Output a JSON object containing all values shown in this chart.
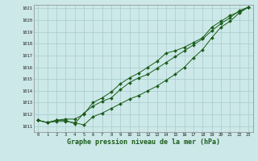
{
  "title": "Graphe pression niveau de la mer (hPa)",
  "xlabel_hours": [
    0,
    1,
    2,
    3,
    4,
    5,
    6,
    7,
    8,
    9,
    10,
    11,
    12,
    13,
    14,
    15,
    16,
    17,
    18,
    19,
    20,
    21,
    22,
    23
  ],
  "line1": [
    1011.5,
    1011.3,
    1011.4,
    1011.4,
    1011.3,
    1011.1,
    1011.8,
    1012.1,
    1012.5,
    1012.9,
    1013.3,
    1013.6,
    1014.0,
    1014.4,
    1014.9,
    1015.4,
    1016.0,
    1016.8,
    1017.5,
    1018.5,
    1019.4,
    1019.9,
    1020.6,
    1021.1
  ],
  "line2": [
    1011.5,
    1011.3,
    1011.5,
    1011.6,
    1011.6,
    1012.0,
    1013.0,
    1013.4,
    1013.9,
    1014.6,
    1015.1,
    1015.5,
    1016.0,
    1016.5,
    1017.2,
    1017.4,
    1017.7,
    1018.1,
    1018.5,
    1019.4,
    1019.9,
    1020.4,
    1020.7,
    1021.1
  ],
  "line3": [
    1011.5,
    1011.3,
    1011.5,
    1011.5,
    1011.2,
    1012.1,
    1012.7,
    1013.1,
    1013.4,
    1014.1,
    1014.7,
    1015.1,
    1015.4,
    1015.9,
    1016.4,
    1016.9,
    1017.4,
    1017.9,
    1018.4,
    1019.1,
    1019.7,
    1020.2,
    1020.8,
    1021.1
  ],
  "ylim_min": 1011,
  "ylim_max": 1021,
  "yticks": [
    1011,
    1012,
    1013,
    1014,
    1015,
    1016,
    1017,
    1018,
    1019,
    1020,
    1021
  ],
  "line_color": "#1a5c1a",
  "bg_color": "#cce8e8",
  "grid_color": "#a8cccc",
  "marker": "D",
  "marker_size": 2.0,
  "lw": 0.7
}
